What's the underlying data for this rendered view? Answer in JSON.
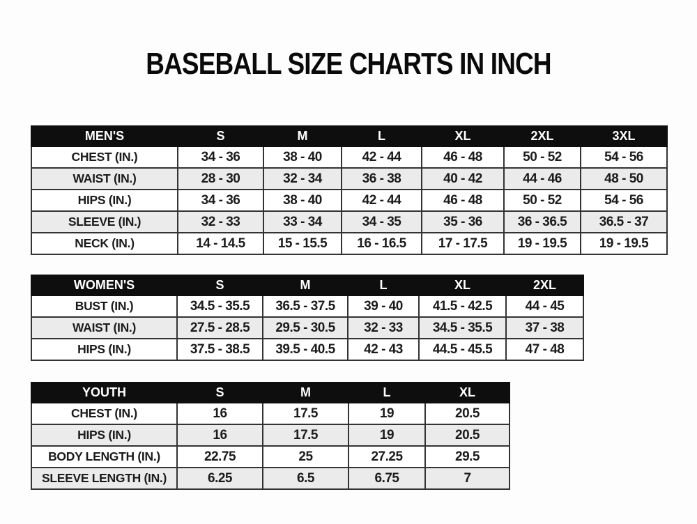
{
  "page": {
    "title": "BASEBALL SIZE CHARTS IN INCH"
  },
  "colors": {
    "header_bg": "#0e0e0e",
    "header_text": "#ffffff",
    "row_alt_bg": "#ebebeb",
    "text": "#1b1b1b"
  },
  "tables": [
    {
      "id": "mens",
      "header": [
        "MEN'S",
        "S",
        "M",
        "L",
        "XL",
        "2XL",
        "3XL"
      ],
      "rows": [
        [
          "CHEST (IN.)",
          "34 - 36",
          "38 - 40",
          "42 - 44",
          "46 - 48",
          "50 - 52",
          "54 - 56"
        ],
        [
          "WAIST (IN.)",
          "28 - 30",
          "32 - 34",
          "36 - 38",
          "40 - 42",
          "44 - 46",
          "48 - 50"
        ],
        [
          "HIPS (IN.)",
          "34 - 36",
          "38 - 40",
          "42 - 44",
          "46 - 48",
          "50 - 52",
          "54 - 56"
        ],
        [
          "SLEEVE (IN.)",
          "32 - 33",
          "33 - 34",
          "34 - 35",
          "35 - 36",
          "36 - 36.5",
          "36.5 - 37"
        ],
        [
          "NECK (IN.)",
          "14 - 14.5",
          "15 - 15.5",
          "16 - 16.5",
          "17 - 17.5",
          "19 - 19.5",
          "19 - 19.5"
        ]
      ]
    },
    {
      "id": "womens",
      "header": [
        "WOMEN'S",
        "S",
        "M",
        "L",
        "XL",
        "2XL"
      ],
      "rows": [
        [
          "BUST (IN.)",
          "34.5 - 35.5",
          "36.5 - 37.5",
          "39 - 40",
          "41.5 - 42.5",
          "44 - 45"
        ],
        [
          "WAIST (IN.)",
          "27.5 - 28.5",
          "29.5 - 30.5",
          "32 - 33",
          "34.5 - 35.5",
          "37 - 38"
        ],
        [
          "HIPS (IN.)",
          "37.5 - 38.5",
          "39.5 - 40.5",
          "42 - 43",
          "44.5 - 45.5",
          "47 - 48"
        ]
      ]
    },
    {
      "id": "youth",
      "header": [
        "YOUTH",
        "S",
        "M",
        "L",
        "XL"
      ],
      "rows": [
        [
          "CHEST (IN.)",
          "16",
          "17.5",
          "19",
          "20.5"
        ],
        [
          "HIPS (IN.)",
          "16",
          "17.5",
          "19",
          "20.5"
        ],
        [
          "BODY LENGTH (IN.)",
          "22.75",
          "25",
          "27.25",
          "29.5"
        ],
        [
          "SLEEVE LENGTH (IN.)",
          "6.25",
          "6.5",
          "6.75",
          "7"
        ]
      ]
    }
  ]
}
